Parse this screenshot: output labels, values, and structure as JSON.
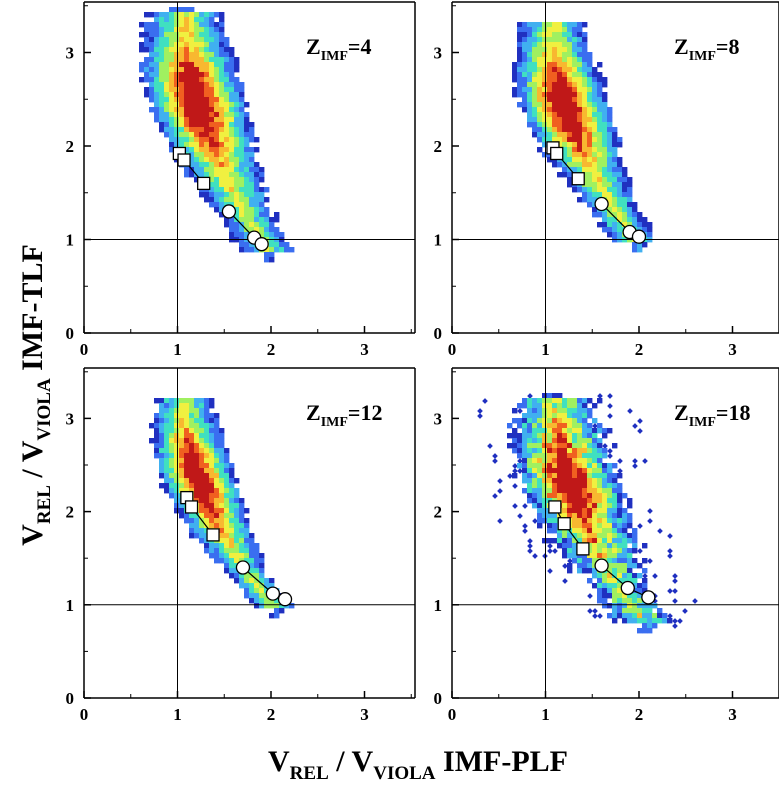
{
  "figure": {
    "ylabel_main": "V",
    "ylabel_sub1": "REL",
    "ylabel_slash": " / V",
    "ylabel_sub2": "VIOLA",
    "ylabel_suffix": "IMF-TLF",
    "xlabel_main": "V",
    "xlabel_sub1": "REL",
    "xlabel_slash": " / V",
    "xlabel_sub2": "VIOLA",
    "xlabel_suffix": "IMF-PLF"
  },
  "chart_data": [
    {
      "type": "scatter",
      "panel": "top-left",
      "label_main": "Z",
      "label_sub": "IMF",
      "label_value": "=4",
      "xlim": [
        0,
        3.5
      ],
      "ylim": [
        0,
        3.5
      ],
      "xticks": [
        "0",
        "1",
        "2",
        "3"
      ],
      "yticks": [
        "0",
        "1",
        "2",
        "3"
      ],
      "reference_lines": {
        "x": 1,
        "y": 1
      },
      "squares": [
        {
          "x": 1.02,
          "y": 1.92
        },
        {
          "x": 1.07,
          "y": 1.85
        },
        {
          "x": 1.28,
          "y": 1.6
        }
      ],
      "circles": [
        {
          "x": 1.55,
          "y": 1.3
        },
        {
          "x": 1.82,
          "y": 1.02
        },
        {
          "x": 1.9,
          "y": 0.95
        }
      ],
      "density_band": {
        "x_top": 0.95,
        "y_top": 3.45,
        "x_bottom": 2.1,
        "y_bottom": 0.85,
        "width": 0.55,
        "sparse": false
      }
    },
    {
      "type": "scatter",
      "panel": "top-right",
      "label_main": "Z",
      "label_sub": "IMF",
      "label_value": "=8",
      "xlim": [
        0,
        3.5
      ],
      "ylim": [
        0,
        3.5
      ],
      "xticks": [
        "0",
        "1",
        "2",
        "3"
      ],
      "yticks": [
        "0",
        "1",
        "2",
        "3"
      ],
      "reference_lines": {
        "x": 1,
        "y": 1
      },
      "squares": [
        {
          "x": 1.08,
          "y": 1.98
        },
        {
          "x": 1.12,
          "y": 1.92
        },
        {
          "x": 1.35,
          "y": 1.65
        }
      ],
      "circles": [
        {
          "x": 1.6,
          "y": 1.38
        },
        {
          "x": 1.9,
          "y": 1.08
        },
        {
          "x": 2.0,
          "y": 1.03
        }
      ],
      "density_band": {
        "x_top": 0.95,
        "y_top": 3.3,
        "x_bottom": 2.1,
        "y_bottom": 0.95,
        "width": 0.5,
        "sparse": false
      }
    },
    {
      "type": "scatter",
      "panel": "bottom-left",
      "label_main": "Z",
      "label_sub": "IMF",
      "label_value": "=12",
      "xlim": [
        0,
        3.5
      ],
      "ylim": [
        0,
        3.5
      ],
      "xticks": [
        "0",
        "1",
        "2",
        "3"
      ],
      "yticks": [
        "0",
        "1",
        "2",
        "3"
      ],
      "reference_lines": {
        "x": 1,
        "y": 1
      },
      "squares": [
        {
          "x": 1.1,
          "y": 2.15
        },
        {
          "x": 1.15,
          "y": 2.05
        },
        {
          "x": 1.38,
          "y": 1.75
        }
      ],
      "circles": [
        {
          "x": 1.7,
          "y": 1.4
        },
        {
          "x": 2.02,
          "y": 1.12
        },
        {
          "x": 2.15,
          "y": 1.06
        }
      ],
      "density_band": {
        "x_top": 0.95,
        "y_top": 3.2,
        "x_bottom": 2.2,
        "y_bottom": 0.95,
        "width": 0.42,
        "sparse": false
      }
    },
    {
      "type": "scatter",
      "panel": "bottom-right",
      "label_main": "Z",
      "label_sub": "IMF",
      "label_value": "=18",
      "xlim": [
        0,
        3.5
      ],
      "ylim": [
        0,
        3.5
      ],
      "xticks": [
        "0",
        "1",
        "2",
        "3"
      ],
      "yticks": [
        "0",
        "1",
        "2",
        "3"
      ],
      "reference_lines": {
        "x": 1,
        "y": 1
      },
      "squares": [
        {
          "x": 1.1,
          "y": 2.05
        },
        {
          "x": 1.2,
          "y": 1.87
        },
        {
          "x": 1.4,
          "y": 1.6
        }
      ],
      "circles": [
        {
          "x": 1.6,
          "y": 1.42
        },
        {
          "x": 1.88,
          "y": 1.18
        },
        {
          "x": 2.1,
          "y": 1.08
        }
      ],
      "density_band": {
        "x_top": 1.0,
        "y_top": 3.2,
        "x_bottom": 2.2,
        "y_bottom": 0.8,
        "width": 0.55,
        "sparse": true
      }
    }
  ],
  "colors": {
    "density": [
      "#2030c0",
      "#3a6ef0",
      "#40b0f0",
      "#40e0c0",
      "#a0f060",
      "#f0f040",
      "#f8b830",
      "#f06020",
      "#c01818"
    ],
    "axis": "#000000",
    "marker_fill": "#ffffff"
  }
}
